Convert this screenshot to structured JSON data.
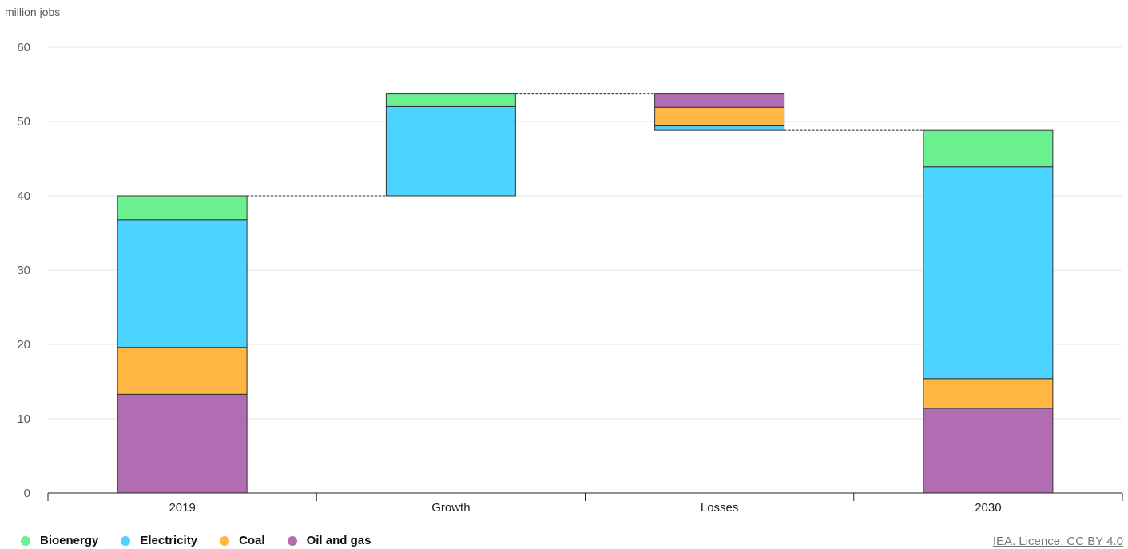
{
  "chart_data": {
    "type": "bar",
    "subtype": "stacked-waterfall",
    "ylabel": "million jobs",
    "ylim": [
      0,
      60
    ],
    "yticks": [
      0,
      10,
      20,
      30,
      40,
      50,
      60
    ],
    "grid": true,
    "legend_position": "bottom-left",
    "categories": [
      "2019",
      "Growth",
      "Losses",
      "2030"
    ],
    "series": [
      {
        "name": "Oil and gas",
        "color": "#b06db2",
        "segments": [
          [
            0,
            13.3
          ],
          null,
          [
            51.9,
            53.7
          ],
          [
            0,
            11.4
          ]
        ]
      },
      {
        "name": "Coal",
        "color": "#ffb643",
        "segments": [
          [
            13.3,
            19.6
          ],
          null,
          [
            49.4,
            51.9
          ],
          [
            11.4,
            15.4
          ]
        ]
      },
      {
        "name": "Electricity",
        "color": "#4cd3ff",
        "segments": [
          [
            19.6,
            36.8
          ],
          [
            40.0,
            52.0
          ],
          [
            48.8,
            49.4
          ],
          [
            15.4,
            43.9
          ]
        ]
      },
      {
        "name": "Bioenergy",
        "color": "#6af08e",
        "segments": [
          [
            36.8,
            40.0
          ],
          [
            52.0,
            53.7
          ],
          null,
          [
            43.9,
            48.8
          ]
        ]
      }
    ],
    "connectors": [
      {
        "from": "2019",
        "to": "Growth",
        "y": 40.0
      },
      {
        "from": "Growth",
        "to": "Losses",
        "y": 53.7
      },
      {
        "from": "Losses",
        "to": "2030",
        "y": 48.8
      }
    ],
    "legend_order": [
      "Bioenergy",
      "Electricity",
      "Coal",
      "Oil and gas"
    ]
  },
  "source": {
    "text": "IEA. Licence: CC BY 4.0"
  }
}
